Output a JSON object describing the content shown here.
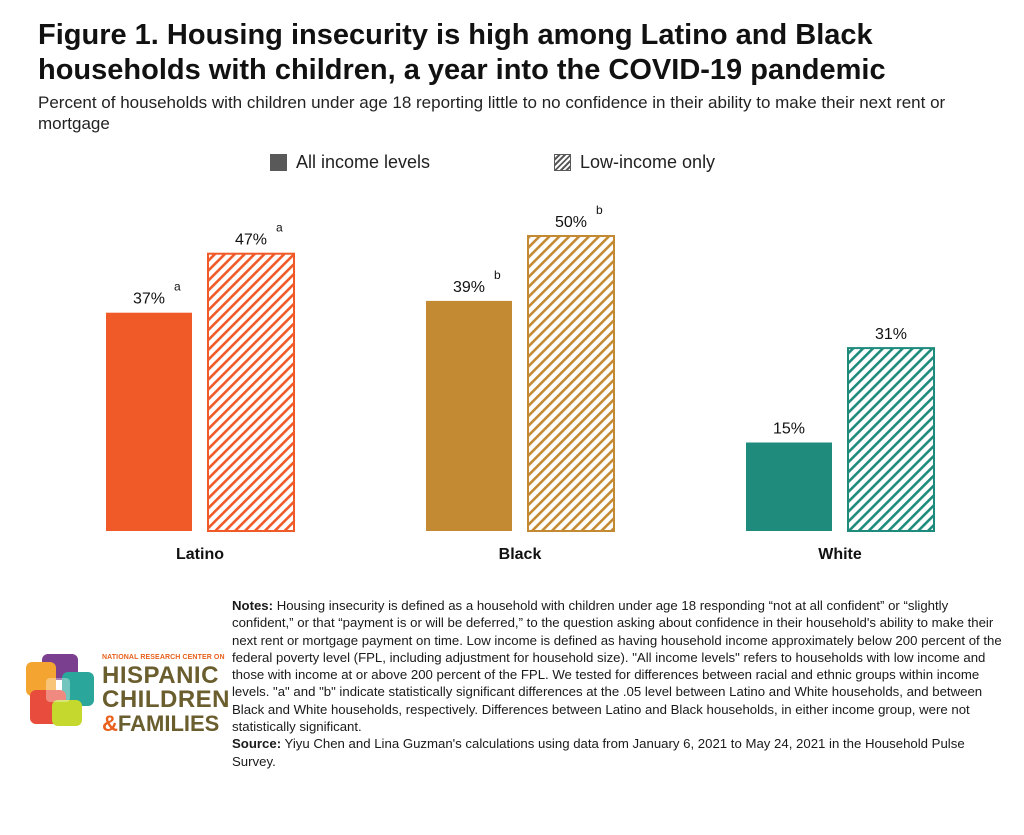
{
  "title": "Figure 1. Housing insecurity is high among Latino and Black households with children, a year into the COVID-19 pandemic",
  "subtitle": "Percent of households with children under age 18 reporting little to no confidence in their ability to make their next rent or mortgage",
  "legend": {
    "all_income": "All income levels",
    "low_income": "Low-income only"
  },
  "chart_data": {
    "type": "bar",
    "title": "Figure 1. Housing insecurity is high among Latino and Black households with children, a year into the COVID-19 pandemic",
    "subtitle": "Percent of households with children under age 18 reporting little to no confidence in their ability to make their next rent or mortgage",
    "categories": [
      "Latino",
      "Black",
      "White"
    ],
    "colors": [
      "#f05a28",
      "#c48a33",
      "#1f8b7d"
    ],
    "ylim": [
      0,
      60
    ],
    "grid": false,
    "legend_position": "top-center",
    "series": [
      {
        "name": "All income levels",
        "style": "solid",
        "values": [
          37,
          39,
          15
        ],
        "labels": [
          "37%",
          "39%",
          "15%"
        ],
        "significance": [
          "a",
          "b",
          ""
        ]
      },
      {
        "name": "Low-income only",
        "style": "hatched",
        "values": [
          47,
          50,
          31
        ],
        "labels": [
          "47%",
          "50%",
          "31%"
        ],
        "significance": [
          "a",
          "b",
          ""
        ]
      }
    ]
  },
  "notes": {
    "notes_label": "Notes:",
    "notes_text": " Housing insecurity is defined as a household with children under age 18 responding “not at all confident” or “slightly confident,” or that “payment is or will be deferred,” to the question asking about confidence in their household's ability to make their next rent or mortgage payment on time. Low income is defined as having household income approximately below 200 percent of the federal poverty level (FPL, including adjustment for household size). \"All income levels\" refers to households with low income and those with income at or above 200 percent of the FPL. We tested for differences between racial and ethnic groups within income levels. \"a\" and \"b\" indicate statistically significant differences at the .05 level between Latino and White households, and between Black and White households, respectively. Differences between Latino and Black households, in either income group, were not statistically significant.",
    "source_label": "Source:",
    "source_text": " Yiyu Chen and Lina Guzman's calculations using data from January 6, 2021 to May 24, 2021 in the Household Pulse Survey."
  },
  "logo": {
    "line1": "NATIONAL RESEARCH CENTER ON",
    "line2": "HISPANIC",
    "line3": "CHILDREN",
    "line4_amp": "&",
    "line4_rest": "FAMILIES"
  }
}
